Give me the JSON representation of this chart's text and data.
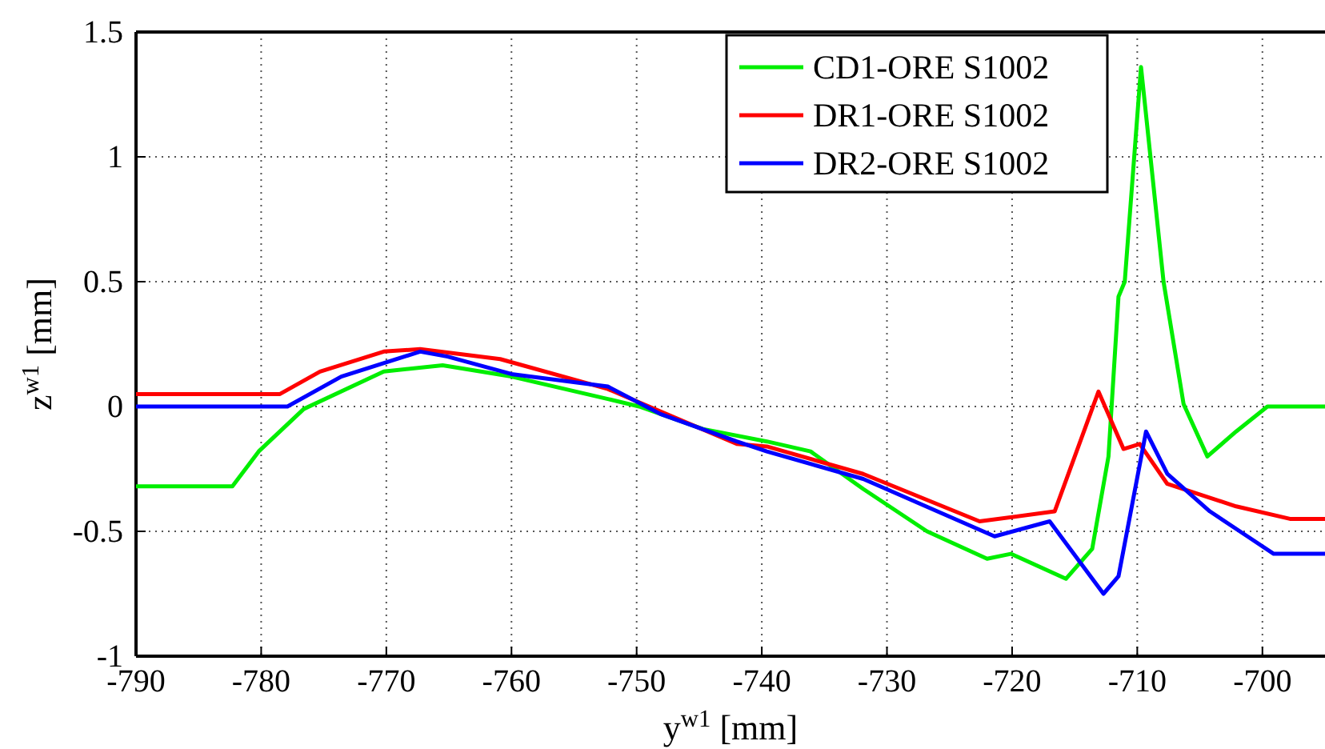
{
  "chart_data": {
    "type": "line",
    "xlabel": "y$^{w1}$ [mm]",
    "ylabel": "z$^{w1}$ [mm]",
    "xlim": [
      -790,
      -695
    ],
    "ylim": [
      -1,
      1.5
    ],
    "xticks": [
      -790,
      -780,
      -770,
      -760,
      -750,
      -740,
      -730,
      -720,
      -710,
      -700
    ],
    "yticks": [
      -1,
      -0.5,
      0,
      0.5,
      1,
      1.5
    ],
    "grid": true,
    "legend": "top right",
    "line_style": "solid",
    "marker": "none",
    "series": [
      {
        "name": "CD1-ORE S1002",
        "color": "#00ee00",
        "x": [
          -790,
          -782.3,
          -780.2,
          -776.6,
          -770.2,
          -765.5,
          -760,
          -752.3,
          -749.8,
          -744.7,
          -739.6,
          -736.1,
          -731.9,
          -726.8,
          -722,
          -720.1,
          -715.7,
          -713.6,
          -712.3,
          -711.5,
          -711,
          -709.7,
          -707.9,
          -706.3,
          -704.4,
          -702.1,
          -699.6,
          -695
        ],
        "values": [
          -0.32,
          -0.32,
          -0.18,
          -0.01,
          0.14,
          0.165,
          0.12,
          0.03,
          0,
          -0.09,
          -0.14,
          -0.18,
          -0.33,
          -0.5,
          -0.61,
          -0.59,
          -0.69,
          -0.57,
          -0.2,
          0.44,
          0.5,
          1.36,
          0.5,
          0.01,
          -0.2,
          -0.1,
          0,
          0
        ]
      },
      {
        "name": "DR1-ORE S1002",
        "color": "#ff0000",
        "x": [
          -790,
          -778.5,
          -775.3,
          -770.2,
          -767.3,
          -760.9,
          -752.3,
          -742,
          -739.6,
          -731.9,
          -722.6,
          -716.6,
          -713.1,
          -711.1,
          -709.8,
          -707.6,
          -702.1,
          -697.8,
          -695
        ],
        "values": [
          0.05,
          0.05,
          0.14,
          0.22,
          0.23,
          0.19,
          0.07,
          -0.15,
          -0.16,
          -0.27,
          -0.46,
          -0.42,
          0.06,
          -0.17,
          -0.15,
          -0.31,
          -0.4,
          -0.45,
          -0.45
        ]
      },
      {
        "name": "DR2-ORE S1002",
        "color": "#0000ff",
        "x": [
          -790,
          -777.9,
          -773.6,
          -767.3,
          -765.1,
          -760,
          -752.3,
          -748.1,
          -742,
          -739.6,
          -731.9,
          -721.4,
          -717,
          -712.7,
          -711.5,
          -709.3,
          -707.6,
          -704.2,
          -701.2,
          -699.1,
          -695
        ],
        "values": [
          0,
          0,
          0.12,
          0.22,
          0.2,
          0.13,
          0.08,
          -0.03,
          -0.14,
          -0.18,
          -0.29,
          -0.52,
          -0.46,
          -0.75,
          -0.68,
          -0.1,
          -0.27,
          -0.42,
          -0.52,
          -0.59,
          -0.59
        ]
      }
    ]
  }
}
